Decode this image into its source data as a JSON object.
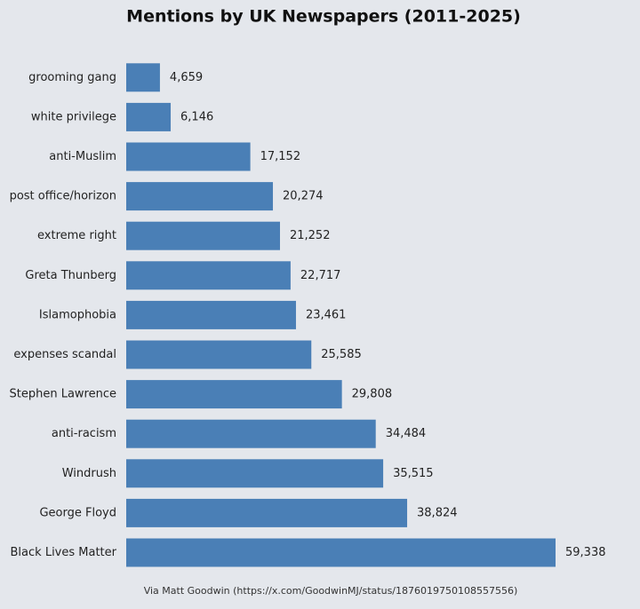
{
  "chart_data": {
    "type": "bar",
    "orientation": "horizontal",
    "title": "Mentions by UK Newspapers (2011-2025)",
    "categories": [
      "grooming gang",
      "white privilege",
      "anti-Muslim",
      "post office/horizon",
      "extreme right",
      "Greta Thunberg",
      "Islamophobia",
      "expenses scandal",
      "Stephen Lawrence",
      "anti-racism",
      "Windrush",
      "George Floyd",
      "Black Lives Matter"
    ],
    "values": [
      4659,
      6146,
      17152,
      20274,
      21252,
      22717,
      23461,
      25585,
      29808,
      34484,
      35515,
      38824,
      59338
    ],
    "value_labels": [
      "4,659",
      "6,146",
      "17,152",
      "20,274",
      "21,252",
      "22,717",
      "23,461",
      "25,585",
      "29,808",
      "34,484",
      "35,515",
      "38,824",
      "59,338"
    ],
    "color": "#4a7fb6",
    "source": "Via Matt Goodwin (https://x.com/GoodwinMJ/status/1876019750108557556)"
  }
}
